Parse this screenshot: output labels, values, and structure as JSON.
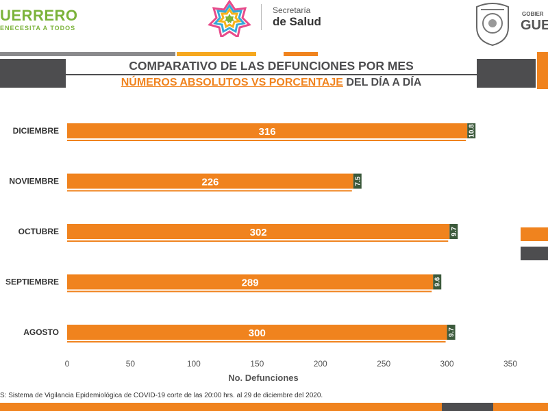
{
  "header": {
    "state_title": "UERRERO",
    "state_slogan": "ENECESITA A TODOS",
    "secretaria_line1": "Secretaría",
    "secretaria_line2": "de Salud",
    "gob_small": "GOBIER",
    "gob_big": "GUE"
  },
  "title": {
    "line1": "COMPARATIVO DE LAS DEFUNCIONES POR MES",
    "line2_orange": "NÚMEROS ABSOLUTOS VS PORCENTAJE",
    "line2_grey": " DEL DÍA A DÍA"
  },
  "footer": {
    "source": "S: Sistema de Vigilancia Epidemiológica de COVID-19 corte de las 20:00 hrs. al 29 de diciembre del 2020."
  },
  "colors": {
    "orange": "#f0831e",
    "dark_grey": "#4d4d4f",
    "pct_box": "#3c5a3c",
    "green_brand": "#7bb33a"
  },
  "chart_data": {
    "type": "bar",
    "orientation": "horizontal",
    "categories": [
      "DICIEMBRE",
      "NOVIEMBRE",
      "OCTUBRE",
      "SEPTIEMBRE",
      "AGOSTO"
    ],
    "series": [
      {
        "values": [
          316,
          226,
          302,
          289,
          300
        ]
      },
      {
        "values": [
          10.8,
          7.5,
          9.7,
          9.6,
          9.7
        ]
      }
    ],
    "xlabel": "No. Defunciones",
    "xlim": [
      0,
      350
    ],
    "xticks": [
      0,
      50,
      100,
      150,
      200,
      250,
      300,
      350
    ]
  }
}
